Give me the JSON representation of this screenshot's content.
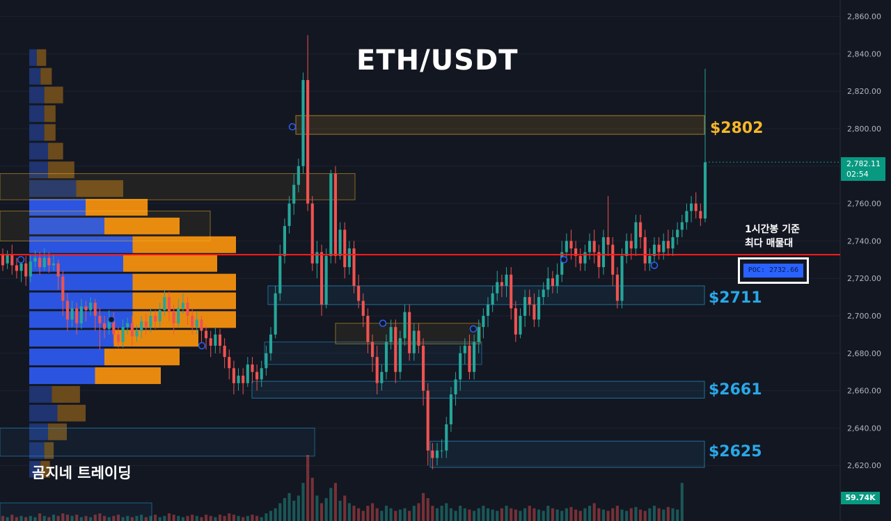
{
  "header": {
    "title": "ETH/USDT"
  },
  "branding": {
    "watermark": "곰지네 트레이딩"
  },
  "annotation": {
    "line1": "1시간봉 기준",
    "line2": "최다 매물대"
  },
  "poc": {
    "label": "POC: 2732.66",
    "price": 2732.66
  },
  "last_price": {
    "value": "2,782.11",
    "countdown": "02:54"
  },
  "volume_tag": {
    "value": "59.74K"
  },
  "zone_labels": {
    "z2802": "$2802",
    "z2711": "$2711",
    "z2661": "$2661",
    "z2625": "$2625"
  },
  "colors": {
    "background": "#131722",
    "up": "#26a69a",
    "down": "#ef5350",
    "poc_line": "#ff1a1a",
    "profile_buy": "#2962ff",
    "profile_sell": "#f7931a",
    "zone_gold": "#f5b728",
    "zone_blue": "#29a8e8"
  },
  "chart_data": {
    "type": "candlestick",
    "title": "ETH/USDT",
    "timeframe": "1h",
    "y_axis": {
      "min": 2612,
      "max": 2866,
      "ticks": [
        2860,
        2840,
        2820,
        2800,
        2780,
        2760,
        2740,
        2720,
        2700,
        2680,
        2660,
        2640,
        2620
      ]
    },
    "zones": [
      {
        "label": "$2802",
        "low": 2797,
        "high": 2807,
        "color": "gold"
      },
      {
        "label": "$2711",
        "low": 2706,
        "high": 2716,
        "color": "blue"
      },
      {
        "label": "$2661",
        "low": 2656,
        "high": 2665,
        "color": "blue"
      },
      {
        "label": "$2625",
        "low": 2619,
        "high": 2633,
        "color": "blue"
      }
    ],
    "poc_price": 2732.66,
    "last_price": 2782.11,
    "volume_profile": [
      {
        "price": 2838,
        "buy": 0.04,
        "sell": 0.05
      },
      {
        "price": 2828,
        "buy": 0.06,
        "sell": 0.06
      },
      {
        "price": 2818,
        "buy": 0.08,
        "sell": 0.1
      },
      {
        "price": 2808,
        "buy": 0.08,
        "sell": 0.06
      },
      {
        "price": 2798,
        "buy": 0.08,
        "sell": 0.06
      },
      {
        "price": 2788,
        "buy": 0.1,
        "sell": 0.08
      },
      {
        "price": 2778,
        "buy": 0.1,
        "sell": 0.14
      },
      {
        "price": 2768,
        "buy": 0.25,
        "sell": 0.25
      },
      {
        "price": 2758,
        "buy": 0.3,
        "sell": 0.33
      },
      {
        "price": 2748,
        "buy": 0.4,
        "sell": 0.4
      },
      {
        "price": 2738,
        "buy": 0.55,
        "sell": 0.55
      },
      {
        "price": 2728,
        "buy": 0.5,
        "sell": 0.5
      },
      {
        "price": 2718,
        "buy": 0.55,
        "sell": 0.55
      },
      {
        "price": 2708,
        "buy": 0.55,
        "sell": 0.55
      },
      {
        "price": 2698,
        "buy": 0.55,
        "sell": 0.55
      },
      {
        "price": 2688,
        "buy": 0.45,
        "sell": 0.45
      },
      {
        "price": 2678,
        "buy": 0.4,
        "sell": 0.4
      },
      {
        "price": 2668,
        "buy": 0.35,
        "sell": 0.35
      },
      {
        "price": 2658,
        "buy": 0.12,
        "sell": 0.15
      },
      {
        "price": 2648,
        "buy": 0.15,
        "sell": 0.15
      },
      {
        "price": 2638,
        "buy": 0.1,
        "sell": 0.1
      },
      {
        "price": 2628,
        "buy": 0.08,
        "sell": 0.05
      },
      {
        "price": 2618,
        "buy": 0.06,
        "sell": 0.05
      }
    ],
    "candles": [
      [
        2733,
        2727,
        2736,
        2724
      ],
      [
        2728,
        2733,
        2735,
        2725
      ],
      [
        2733,
        2727,
        2738,
        2722
      ],
      [
        2727,
        2724,
        2731,
        2720
      ],
      [
        2724,
        2728,
        2730,
        2718
      ],
      [
        2728,
        2721,
        2732,
        2716
      ],
      [
        2721,
        2729,
        2733,
        2718
      ],
      [
        2729,
        2731,
        2735,
        2726
      ],
      [
        2731,
        2726,
        2734,
        2722
      ],
      [
        2726,
        2731,
        2736,
        2724
      ],
      [
        2731,
        2727,
        2734,
        2723
      ],
      [
        2727,
        2728,
        2733,
        2724
      ],
      [
        2728,
        2721,
        2730,
        2714
      ],
      [
        2721,
        2708,
        2724,
        2700
      ],
      [
        2708,
        2698,
        2712,
        2692
      ],
      [
        2698,
        2704,
        2708,
        2694
      ],
      [
        2704,
        2696,
        2707,
        2690
      ],
      [
        2696,
        2705,
        2709,
        2693
      ],
      [
        2705,
        2703,
        2708,
        2697
      ],
      [
        2703,
        2707,
        2710,
        2700
      ],
      [
        2707,
        2700,
        2709,
        2692
      ],
      [
        2700,
        2696,
        2704,
        2682
      ],
      [
        2696,
        2693,
        2700,
        2688
      ],
      [
        2693,
        2699,
        2703,
        2690
      ],
      [
        2699,
        2690,
        2702,
        2685
      ],
      [
        2690,
        2686,
        2694,
        2683
      ],
      [
        2686,
        2694,
        2698,
        2683
      ],
      [
        2694,
        2696,
        2699,
        2690
      ],
      [
        2696,
        2689,
        2700,
        2684
      ],
      [
        2689,
        2692,
        2695,
        2686
      ],
      [
        2692,
        2697,
        2700,
        2688
      ],
      [
        2697,
        2694,
        2701,
        2690
      ],
      [
        2694,
        2700,
        2704,
        2691
      ],
      [
        2700,
        2697,
        2703,
        2693
      ],
      [
        2697,
        2703,
        2707,
        2694
      ],
      [
        2703,
        2710,
        2714,
        2700
      ],
      [
        2710,
        2702,
        2713,
        2697
      ],
      [
        2702,
        2696,
        2706,
        2690
      ],
      [
        2696,
        2704,
        2709,
        2694
      ],
      [
        2704,
        2707,
        2712,
        2701
      ],
      [
        2707,
        2700,
        2710,
        2695
      ],
      [
        2700,
        2694,
        2704,
        2690
      ],
      [
        2694,
        2698,
        2702,
        2690
      ],
      [
        2698,
        2692,
        2700,
        2686
      ],
      [
        2692,
        2688,
        2695,
        2682
      ],
      [
        2688,
        2684,
        2692,
        2678
      ],
      [
        2684,
        2690,
        2694,
        2680
      ],
      [
        2690,
        2684,
        2693,
        2680
      ],
      [
        2684,
        2678,
        2688,
        2672
      ],
      [
        2678,
        2672,
        2682,
        2666
      ],
      [
        2672,
        2664,
        2676,
        2658
      ],
      [
        2664,
        2668,
        2672,
        2660
      ],
      [
        2668,
        2664,
        2672,
        2658
      ],
      [
        2664,
        2674,
        2678,
        2662
      ],
      [
        2674,
        2670,
        2678,
        2664
      ],
      [
        2670,
        2666,
        2674,
        2660
      ],
      [
        2666,
        2672,
        2676,
        2662
      ],
      [
        2672,
        2680,
        2684,
        2668
      ],
      [
        2680,
        2690,
        2694,
        2676
      ],
      [
        2690,
        2712,
        2716,
        2688
      ],
      [
        2712,
        2732,
        2738,
        2708
      ],
      [
        2732,
        2748,
        2752,
        2728
      ],
      [
        2748,
        2760,
        2764,
        2744
      ],
      [
        2760,
        2770,
        2776,
        2754
      ],
      [
        2770,
        2780,
        2784,
        2766
      ],
      [
        2780,
        2826,
        2830,
        2776
      ],
      [
        2826,
        2760,
        2850,
        2756
      ],
      [
        2760,
        2728,
        2764,
        2724
      ],
      [
        2728,
        2734,
        2740,
        2720
      ],
      [
        2734,
        2706,
        2738,
        2700
      ],
      [
        2706,
        2732,
        2736,
        2704
      ],
      [
        2732,
        2776,
        2778,
        2728
      ],
      [
        2776,
        2732,
        2780,
        2728
      ],
      [
        2732,
        2746,
        2750,
        2730
      ],
      [
        2746,
        2726,
        2750,
        2720
      ],
      [
        2726,
        2736,
        2740,
        2722
      ],
      [
        2736,
        2716,
        2740,
        2712
      ],
      [
        2716,
        2708,
        2722,
        2704
      ],
      [
        2708,
        2700,
        2712,
        2694
      ],
      [
        2700,
        2686,
        2704,
        2680
      ],
      [
        2686,
        2678,
        2690,
        2670
      ],
      [
        2678,
        2664,
        2684,
        2658
      ],
      [
        2664,
        2670,
        2674,
        2660
      ],
      [
        2670,
        2686,
        2690,
        2666
      ],
      [
        2686,
        2694,
        2698,
        2682
      ],
      [
        2694,
        2670,
        2698,
        2664
      ],
      [
        2670,
        2688,
        2692,
        2666
      ],
      [
        2688,
        2702,
        2706,
        2684
      ],
      [
        2702,
        2680,
        2706,
        2676
      ],
      [
        2680,
        2692,
        2696,
        2676
      ],
      [
        2692,
        2684,
        2696,
        2680
      ],
      [
        2684,
        2660,
        2688,
        2652
      ],
      [
        2660,
        2628,
        2664,
        2620
      ],
      [
        2628,
        2624,
        2632,
        2618
      ],
      [
        2624,
        2628,
        2632,
        2620
      ],
      [
        2628,
        2628,
        2634,
        2624
      ],
      [
        2628,
        2642,
        2646,
        2624
      ],
      [
        2642,
        2658,
        2662,
        2638
      ],
      [
        2658,
        2666,
        2670,
        2652
      ],
      [
        2666,
        2680,
        2684,
        2660
      ],
      [
        2680,
        2684,
        2688,
        2674
      ],
      [
        2684,
        2670,
        2690,
        2666
      ],
      [
        2670,
        2686,
        2690,
        2666
      ],
      [
        2686,
        2694,
        2698,
        2680
      ],
      [
        2694,
        2700,
        2704,
        2688
      ],
      [
        2700,
        2706,
        2710,
        2694
      ],
      [
        2706,
        2712,
        2716,
        2702
      ],
      [
        2712,
        2718,
        2724,
        2708
      ],
      [
        2718,
        2716,
        2722,
        2710
      ],
      [
        2716,
        2722,
        2726,
        2710
      ],
      [
        2722,
        2704,
        2726,
        2698
      ],
      [
        2704,
        2690,
        2708,
        2686
      ],
      [
        2690,
        2700,
        2704,
        2688
      ],
      [
        2700,
        2710,
        2714,
        2694
      ],
      [
        2710,
        2706,
        2714,
        2700
      ],
      [
        2706,
        2698,
        2712,
        2694
      ],
      [
        2698,
        2710,
        2714,
        2694
      ],
      [
        2710,
        2714,
        2718,
        2706
      ],
      [
        2714,
        2720,
        2726,
        2710
      ],
      [
        2720,
        2716,
        2724,
        2712
      ],
      [
        2716,
        2722,
        2728,
        2712
      ],
      [
        2722,
        2734,
        2740,
        2718
      ],
      [
        2734,
        2740,
        2744,
        2730
      ],
      [
        2740,
        2736,
        2746,
        2730
      ],
      [
        2736,
        2732,
        2740,
        2726
      ],
      [
        2732,
        2728,
        2736,
        2724
      ],
      [
        2728,
        2734,
        2738,
        2724
      ],
      [
        2734,
        2740,
        2744,
        2730
      ],
      [
        2740,
        2734,
        2746,
        2728
      ],
      [
        2734,
        2726,
        2738,
        2720
      ],
      [
        2726,
        2742,
        2746,
        2722
      ],
      [
        2742,
        2738,
        2764,
        2732
      ],
      [
        2738,
        2722,
        2742,
        2716
      ],
      [
        2722,
        2708,
        2726,
        2704
      ],
      [
        2708,
        2732,
        2736,
        2704
      ],
      [
        2732,
        2740,
        2744,
        2728
      ],
      [
        2740,
        2736,
        2744,
        2730
      ],
      [
        2736,
        2750,
        2754,
        2732
      ],
      [
        2750,
        2742,
        2754,
        2736
      ],
      [
        2742,
        2728,
        2746,
        2724
      ],
      [
        2728,
        2732,
        2736,
        2724
      ],
      [
        2732,
        2738,
        2742,
        2728
      ],
      [
        2738,
        2734,
        2742,
        2730
      ],
      [
        2734,
        2740,
        2744,
        2730
      ],
      [
        2740,
        2736,
        2746,
        2732
      ],
      [
        2736,
        2742,
        2746,
        2732
      ],
      [
        2742,
        2746,
        2750,
        2738
      ],
      [
        2746,
        2750,
        2754,
        2742
      ],
      [
        2750,
        2756,
        2760,
        2746
      ],
      [
        2756,
        2760,
        2764,
        2750
      ],
      [
        2760,
        2756,
        2766,
        2752
      ],
      [
        2756,
        2752,
        2760,
        2748
      ],
      [
        2752,
        2782,
        2832,
        2750
      ]
    ],
    "volume": [
      4,
      3,
      5,
      3,
      4,
      3,
      4,
      3,
      6,
      4,
      3,
      5,
      4,
      6,
      5,
      4,
      5,
      3,
      4,
      3,
      5,
      6,
      4,
      3,
      4,
      5,
      3,
      4,
      3,
      4,
      5,
      3,
      4,
      5,
      3,
      4,
      6,
      5,
      4,
      3,
      4,
      5,
      4,
      3,
      5,
      4,
      3,
      5,
      4,
      6,
      5,
      4,
      3,
      4,
      5,
      4,
      3,
      6,
      8,
      10,
      14,
      18,
      22,
      16,
      20,
      30,
      52,
      34,
      20,
      14,
      18,
      26,
      30,
      16,
      20,
      14,
      12,
      10,
      8,
      12,
      14,
      10,
      8,
      12,
      10,
      8,
      9,
      10,
      8,
      12,
      14,
      22,
      18,
      12,
      10,
      12,
      14,
      10,
      8,
      12,
      10,
      9,
      8,
      10,
      12,
      10,
      9,
      8,
      10,
      12,
      10,
      9,
      8,
      10,
      12,
      10,
      9,
      8,
      12,
      10,
      9,
      8,
      10,
      11,
      9,
      8,
      10,
      12,
      14,
      10,
      9,
      8,
      10,
      12,
      9,
      8,
      10,
      11,
      9,
      8,
      10,
      12,
      10,
      9,
      11,
      10,
      9,
      30
    ]
  }
}
